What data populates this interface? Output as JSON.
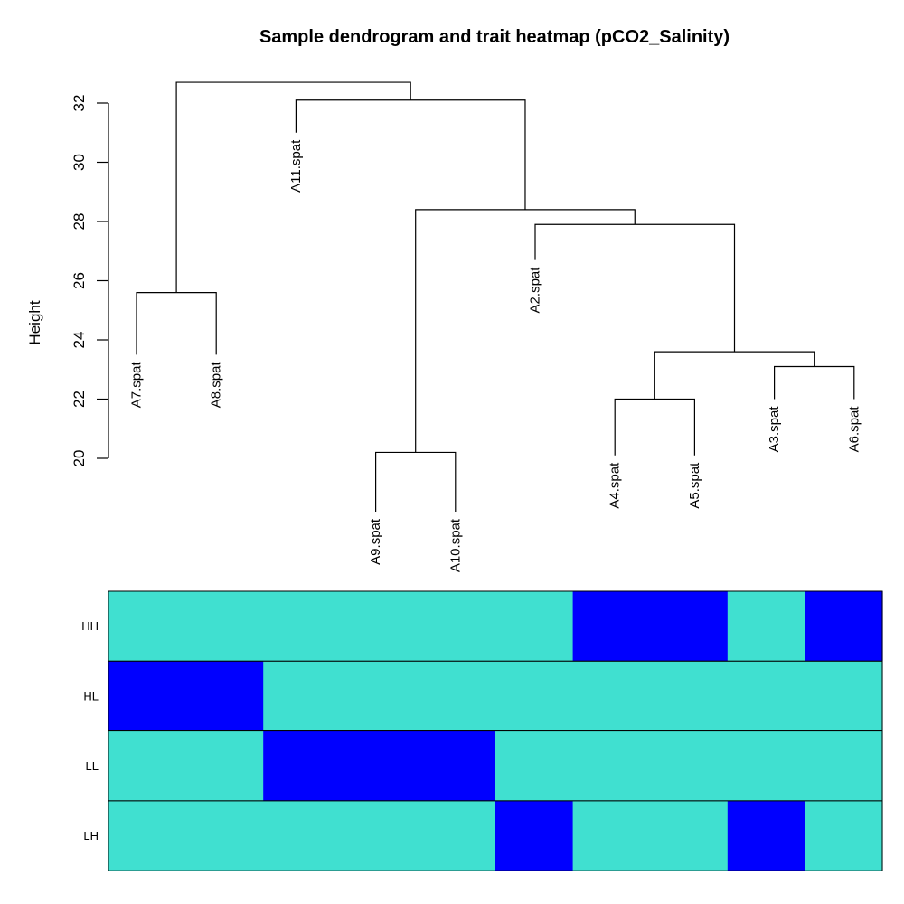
{
  "chart_data": [
    {
      "type": "dendrogram",
      "title": "Sample dendrogram and trait heatmap (pCO2_Salinity)",
      "ylabel": "Height",
      "yticks": [
        20,
        22,
        24,
        26,
        28,
        30,
        32
      ],
      "ylim": [
        20,
        33.2
      ],
      "leaves": [
        {
          "label": "A7.spat",
          "top": 23.5
        },
        {
          "label": "A8.spat",
          "top": 23.5
        },
        {
          "label": "A11.spat",
          "top": 31.0
        },
        {
          "label": "A9.spat",
          "top": 18.2
        },
        {
          "label": "A10.spat",
          "top": 18.2
        },
        {
          "label": "A2.spat",
          "top": 26.7
        },
        {
          "label": "A4.spat",
          "top": 20.1
        },
        {
          "label": "A5.spat",
          "top": 20.1
        },
        {
          "label": "A3.spat",
          "top": 22.0
        },
        {
          "label": "A6.spat",
          "top": 22.0
        }
      ],
      "merges": [
        {
          "children": [
            "A7.spat",
            "A8.spat"
          ],
          "height": 25.6
        },
        {
          "children": [
            "A9.spat",
            "A10.spat"
          ],
          "height": 20.2
        },
        {
          "children": [
            "A4.spat",
            "A5.spat"
          ],
          "height": 22.0
        },
        {
          "children": [
            "A3.spat",
            "A6.spat"
          ],
          "height": 23.1
        },
        {
          "children": [
            "A4.spat+A5.spat",
            "A3.spat+A6.spat"
          ],
          "height": 23.6
        },
        {
          "children": [
            "A2.spat",
            "A4.spat+A5.spat+A3.spat+A6.spat"
          ],
          "height": 27.9
        },
        {
          "children": [
            "A9.spat+A10.spat",
            "A2.spat+A4.spat+A5.spat+A3.spat+A6.spat"
          ],
          "height": 28.4
        },
        {
          "children": [
            "A11.spat",
            "A9.spat+A10.spat+A2.spat+A4.spat+A5.spat+A3.spat+A6.spat"
          ],
          "height": 32.1
        },
        {
          "children": [
            "A7.spat+A8.spat",
            "A11.spat+A9.spat+A10.spat+A2.spat+A4.spat+A5.spat+A3.spat+A6.spat"
          ],
          "height": 32.7
        }
      ]
    },
    {
      "type": "heatmap",
      "rows": [
        "HH",
        "HL",
        "LL",
        "LH"
      ],
      "columns": [
        "A7.spat",
        "A8.spat",
        "A11.spat",
        "A9.spat",
        "A10.spat",
        "A2.spat",
        "A4.spat",
        "A5.spat",
        "A3.spat",
        "A6.spat"
      ],
      "values": [
        [
          0,
          0,
          0,
          0,
          0,
          0,
          1,
          1,
          0,
          1
        ],
        [
          1,
          1,
          0,
          0,
          0,
          0,
          0,
          0,
          0,
          0
        ],
        [
          0,
          0,
          1,
          1,
          1,
          0,
          0,
          0,
          0,
          0
        ],
        [
          0,
          0,
          0,
          0,
          0,
          1,
          0,
          0,
          1,
          0
        ]
      ],
      "colors": {
        "0": "#40E0D0",
        "1": "#0000FF"
      }
    }
  ]
}
